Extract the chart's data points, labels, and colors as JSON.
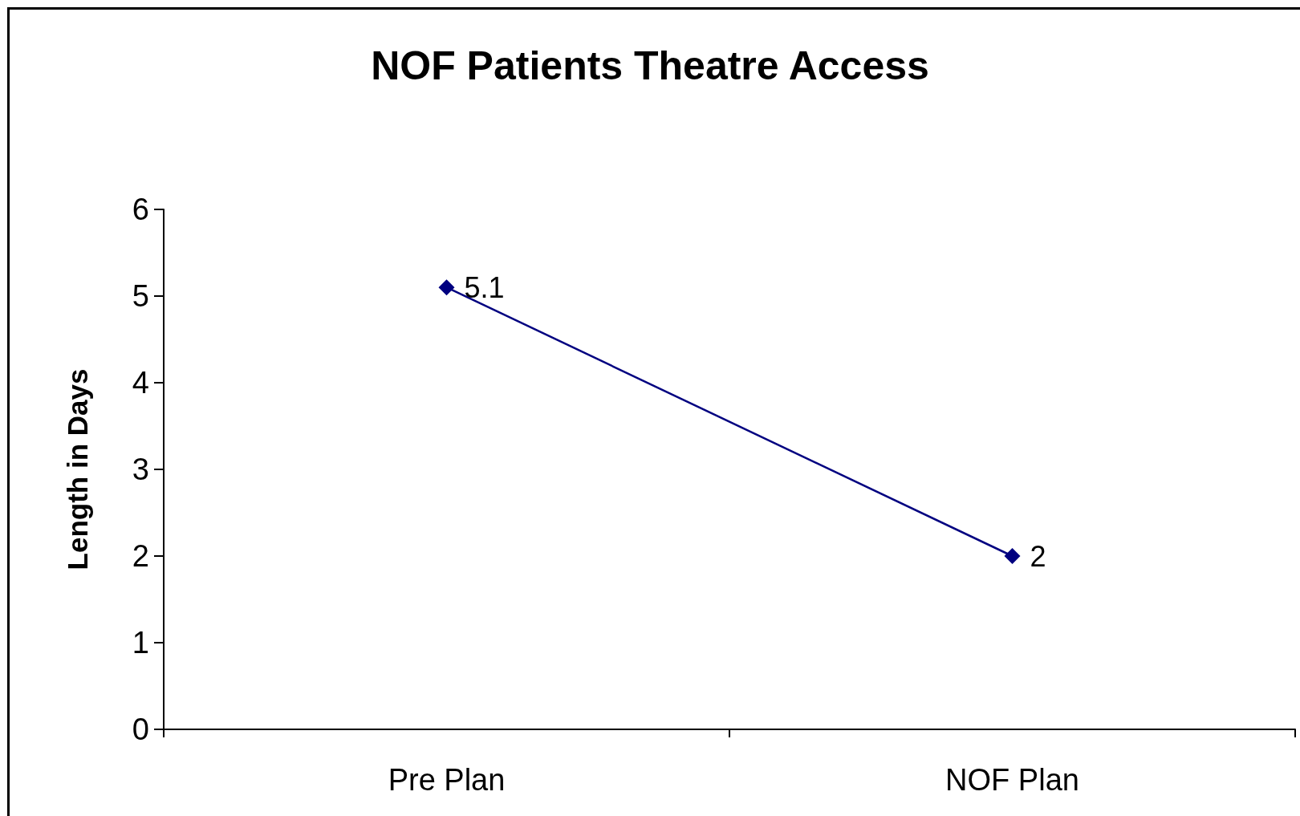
{
  "chart_data": {
    "type": "line",
    "title": "NOF Patients Theatre Access",
    "ylabel": "Length in Days",
    "categories": [
      "Pre Plan",
      "NOF Plan"
    ],
    "series": [
      {
        "color": "#000080",
        "values": [
          5.1,
          2
        ]
      }
    ],
    "ylim": [
      0,
      6
    ],
    "yticks": [
      0,
      1,
      2,
      3,
      4,
      5,
      6
    ],
    "grid": false,
    "marker": "diamond",
    "line_style": "solid",
    "data_labels": true
  }
}
